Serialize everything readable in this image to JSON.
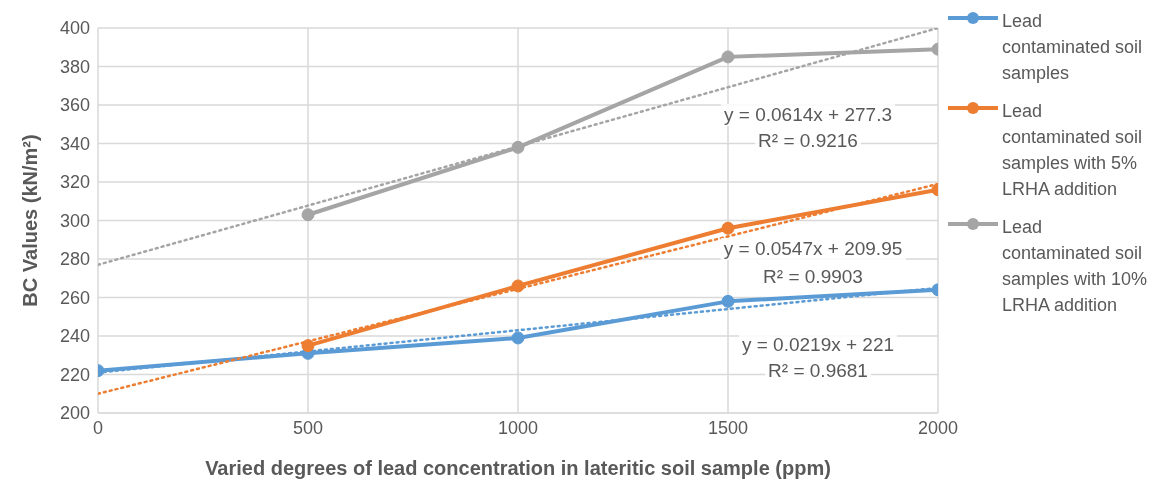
{
  "chart_data": {
    "type": "line",
    "xlabel": "Varied degrees of lead concentration in lateritic soil sample (ppm)",
    "ylabel": "BC Values (kN/m²)",
    "xlim": [
      0,
      2000
    ],
    "xticks": [
      0,
      500,
      1000,
      1500,
      2000
    ],
    "ylim": [
      200,
      400
    ],
    "yticks": [
      200,
      220,
      240,
      260,
      280,
      300,
      320,
      340,
      360,
      380,
      400
    ],
    "grid": true,
    "legend": "right",
    "series": [
      {
        "name": "Lead contaminated soil samples",
        "color": "#5b9bd5",
        "x": [
          0,
          500,
          1000,
          1500,
          2000
        ],
        "values": [
          222,
          231,
          239,
          258,
          264
        ],
        "marker": "circle",
        "line_style": "solid"
      },
      {
        "name": "Lead contaminated soil samples with 5% LRHA addition",
        "color": "#ed7d31",
        "x": [
          500,
          1000,
          1500,
          2000
        ],
        "values": [
          235,
          266,
          296,
          316
        ],
        "marker": "circle",
        "line_style": "solid"
      },
      {
        "name": "Lead contaminated soil samples with 10% LRHA addition",
        "color": "#a5a5a5",
        "x": [
          500,
          1000,
          1500,
          2000
        ],
        "values": [
          303,
          338,
          385,
          389
        ],
        "marker": "circle",
        "line_style": "solid"
      },
      {
        "color": "#5b9bd5",
        "x": [
          0,
          2000
        ],
        "values": [
          221,
          265
        ],
        "marker": "none",
        "line_style": "dotted"
      },
      {
        "color": "#ed7d31",
        "x": [
          0,
          2000
        ],
        "values": [
          210,
          319
        ],
        "marker": "none",
        "line_style": "dotted"
      },
      {
        "color": "#a5a5a5",
        "x": [
          0,
          2000
        ],
        "values": [
          277,
          400
        ],
        "marker": "none",
        "line_style": "dotted"
      }
    ],
    "annotations": [
      "y = 0.0614x + 277.3",
      "R² = 0.9216",
      "y = 0.0547x + 209.95",
      "R² = 0.9903",
      "y = 0.0219x + 221",
      "R² = 0.9681"
    ]
  }
}
